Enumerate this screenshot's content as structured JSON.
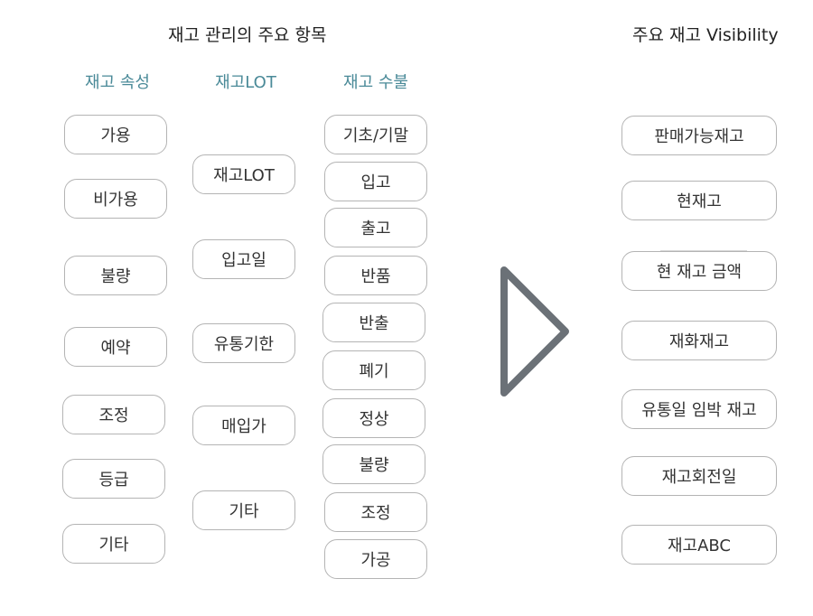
{
  "left_title": "재고 관리의 주요 항목",
  "right_title": "주요 재고 Visibility",
  "accent_color": "#4a8a98",
  "arrow_color": "#6b7177",
  "columns": {
    "attributes": {
      "header": "재고 속성",
      "items": [
        "가용",
        "비가용",
        "불량",
        "예약",
        "조정",
        "등급",
        "기타"
      ]
    },
    "lot": {
      "header": "재고LOT",
      "items": [
        "재고LOT",
        "입고일",
        "유통기한",
        "매입가",
        "기타"
      ]
    },
    "flow": {
      "header": "재고 수불",
      "items": [
        "기초/기말",
        "입고",
        "출고",
        "반품",
        "반출",
        "폐기",
        "정상",
        "불량",
        "조정",
        "가공"
      ]
    }
  },
  "visibility": {
    "items": [
      "판매가능재고",
      "현재고",
      "현 재고 금액",
      "재화재고",
      "유통일 임박 재고",
      "재고회전일",
      "재고ABC"
    ]
  },
  "arrow_icon": "chevron-right-icon"
}
